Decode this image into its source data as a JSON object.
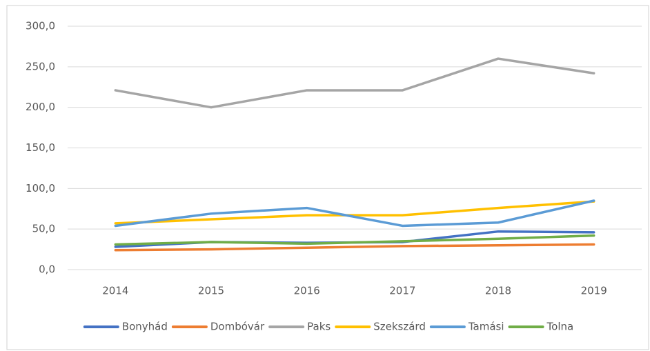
{
  "chart_data": {
    "type": "line",
    "categories": [
      "2014",
      "2015",
      "2016",
      "2017",
      "2018",
      "2019"
    ],
    "series": [
      {
        "name": "Bonyhád",
        "color": "#4472c4",
        "values": [
          28,
          34,
          33,
          34,
          47,
          46
        ]
      },
      {
        "name": "Dombóvár",
        "color": "#ed7d31",
        "values": [
          24,
          25,
          27,
          29,
          30,
          31
        ]
      },
      {
        "name": "Paks",
        "color": "#a5a5a5",
        "values": [
          221,
          200,
          221,
          221,
          260,
          242
        ]
      },
      {
        "name": "Szekszárd",
        "color": "#ffc000",
        "values": [
          57,
          62,
          67,
          67,
          76,
          84
        ]
      },
      {
        "name": "Tamási",
        "color": "#5b9bd5",
        "values": [
          54,
          69,
          76,
          54,
          58,
          85
        ]
      },
      {
        "name": "Tolna",
        "color": "#70ad47",
        "values": [
          31,
          34,
          32,
          35,
          38,
          42
        ]
      }
    ],
    "ylim": [
      0,
      300
    ],
    "yticks": [
      {
        "value": 0,
        "label": "0,0"
      },
      {
        "value": 50,
        "label": "50,0"
      },
      {
        "value": 100,
        "label": "100,0"
      },
      {
        "value": 150,
        "label": "150,0"
      },
      {
        "value": 200,
        "label": "200,0"
      },
      {
        "value": 250,
        "label": "250,0"
      },
      {
        "value": 300,
        "label": "300,0"
      }
    ],
    "grid": true,
    "legend": "bottom"
  }
}
